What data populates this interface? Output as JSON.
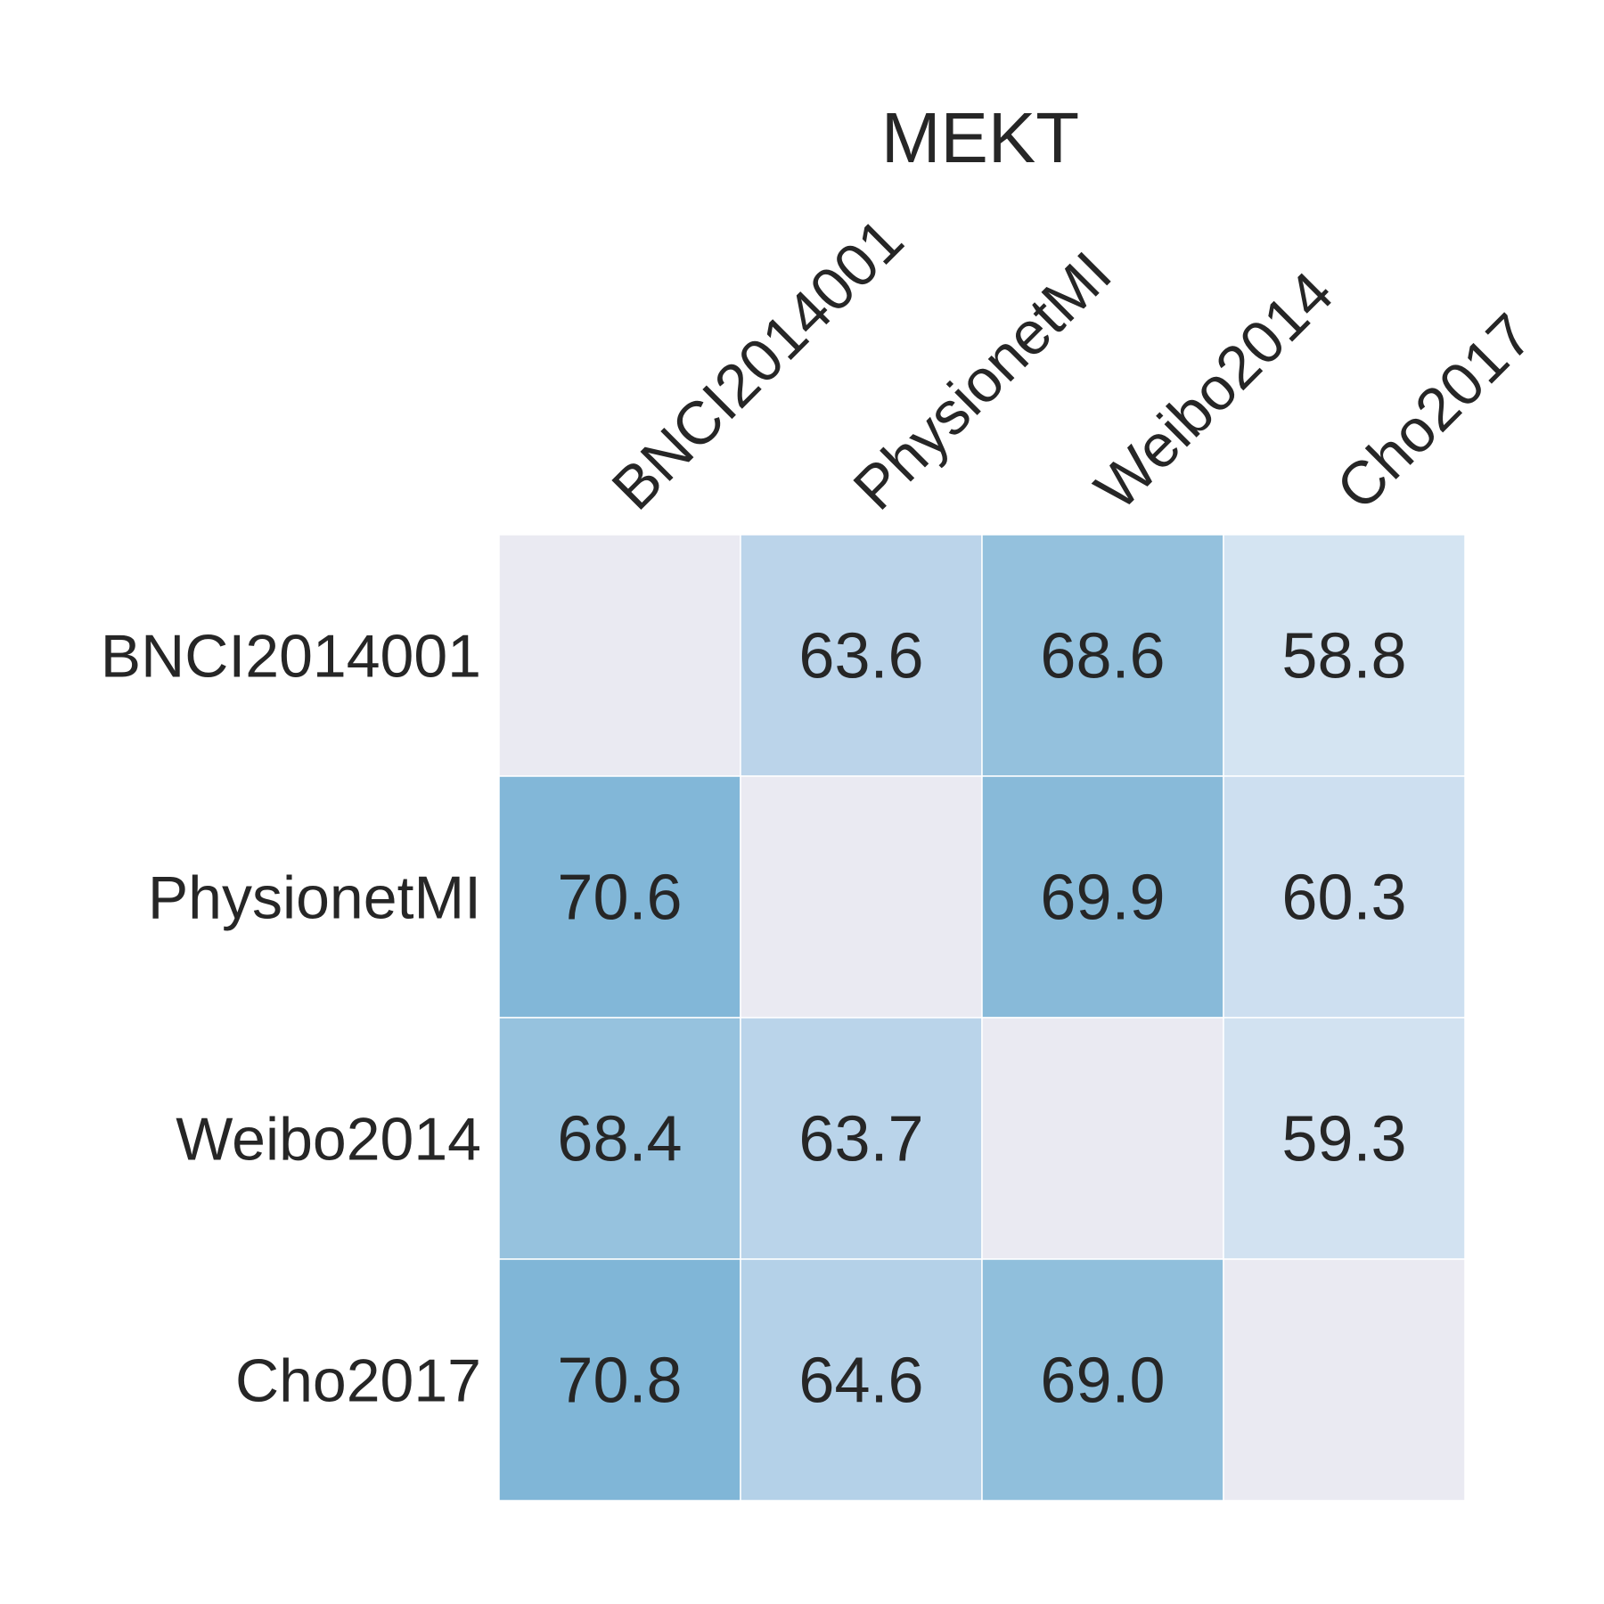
{
  "chart_data": {
    "type": "heatmap",
    "title": "MEKT",
    "x_labels": [
      "BNCI2014001",
      "PhysionetMI",
      "Weibo2014",
      "Cho2017"
    ],
    "y_labels": [
      "BNCI2014001",
      "PhysionetMI",
      "Weibo2014",
      "Cho2017"
    ],
    "x_tick_position": "top",
    "values": [
      [
        null,
        63.6,
        68.6,
        58.8
      ],
      [
        70.6,
        null,
        69.9,
        60.3
      ],
      [
        68.4,
        63.7,
        null,
        59.3
      ],
      [
        70.8,
        64.6,
        69.0,
        null
      ]
    ],
    "value_format": "0.0",
    "missing_color": "#eaeaf2",
    "colors": {
      "low": "#d4e4f2",
      "mid": "#c1d7ec",
      "high_mid": "#a4cae2",
      "high": "#80b6d7"
    }
  }
}
